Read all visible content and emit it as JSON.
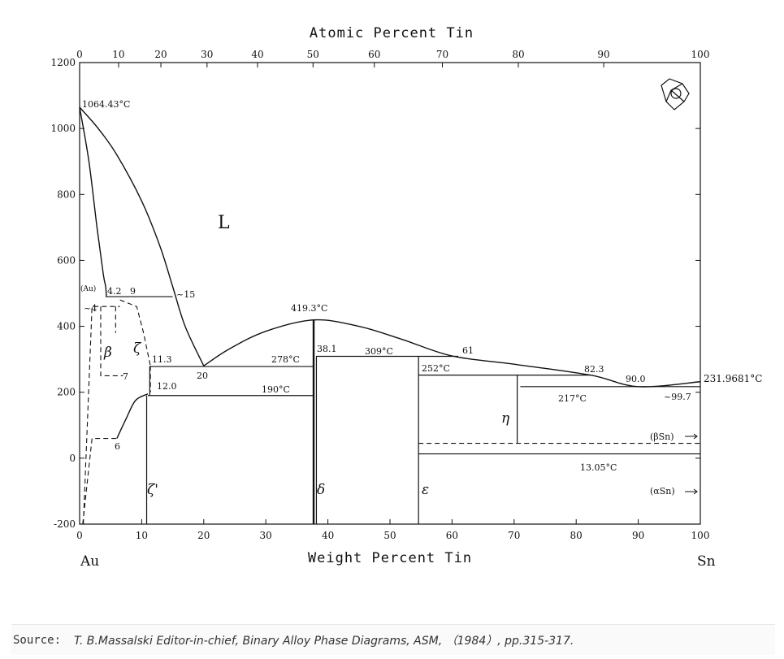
{
  "chart_data": {
    "type": "phase-diagram",
    "title": "",
    "xlabel_bottom": "Weight Percent Tin",
    "xlabel_top": "Atomic Percent Tin",
    "ylabel": "",
    "xlim": [
      0,
      100
    ],
    "ylim": [
      -200,
      1200
    ],
    "x_bottom_ticks": [
      "0",
      "10",
      "20",
      "30",
      "40",
      "50",
      "60",
      "70",
      "80",
      "90",
      "100"
    ],
    "x_top_ticks": [
      "0",
      "10",
      "20",
      "30",
      "40",
      "50",
      "60",
      "70",
      "80",
      "90",
      "100"
    ],
    "y_ticks": [
      "-200",
      "0",
      "200",
      "400",
      "600",
      "800",
      "1000",
      "1200"
    ],
    "y_tick_values": [
      -200,
      0,
      200,
      400,
      600,
      800,
      1000,
      1200
    ],
    "end_labels": {
      "left": "Au",
      "right": "Sn"
    },
    "annotations": {
      "au_melt": "1064.43°C",
      "au_phase": "(Au)",
      "c_4_2": "4.2",
      "c_9": "9",
      "c_15": "~15",
      "c_4": "~4",
      "c_7": "7",
      "c_6": "6",
      "c_11_3": "11.3",
      "c_12_0": "12.0",
      "c_20": "20",
      "t_278": "278°C",
      "t_190": "190°C",
      "t_419": "419.3°C",
      "c_38_1": "38.1",
      "t_309": "309°C",
      "c_61": "61",
      "t_252": "252°C",
      "c_82_3": "82.3",
      "c_90_0": "90.0",
      "t_217": "217°C",
      "c_99_7": "~99.7",
      "sn_melt": "231.9681°C",
      "beta_sn": "(βSn)",
      "t_13": "13.05°C",
      "alpha_sn": "(αSn)"
    },
    "phase_labels": {
      "liquid": "L",
      "beta": "β",
      "zeta": "ζ",
      "zeta_prime": "ζ'",
      "delta": "δ",
      "epsilon": "ε",
      "eta": "η"
    },
    "liquidus_left": [
      [
        0,
        1064.43
      ],
      [
        3,
        1000
      ],
      [
        6,
        920
      ],
      [
        10,
        780
      ],
      [
        13,
        640
      ],
      [
        15,
        520
      ],
      [
        17,
        400
      ],
      [
        20,
        280
      ]
    ],
    "liquidus_right": [
      [
        20,
        280
      ],
      [
        24,
        330
      ],
      [
        30,
        385
      ],
      [
        37.7,
        419.3
      ],
      [
        45,
        400
      ],
      [
        52,
        360
      ],
      [
        60,
        310
      ],
      [
        70,
        285
      ],
      [
        82.3,
        252
      ],
      [
        90,
        217
      ],
      [
        100,
        231.97
      ]
    ],
    "solidus_au": [
      [
        0,
        1064.43
      ],
      [
        1.5,
        900
      ],
      [
        2.8,
        700
      ],
      [
        3.8,
        560
      ],
      [
        4.2,
        520
      ],
      [
        4.3,
        490
      ]
    ],
    "eutectic_15": {
      "temp": 490,
      "x_from": 4.2,
      "x_to": 15
    },
    "eutectic_278": {
      "temp": 278,
      "x_from": 11.3,
      "x_to": 37.7
    },
    "eutectic_217": {
      "temp": 217,
      "x_from": 71,
      "x_to": 100
    },
    "peritectic_309": {
      "temp": 309,
      "x_from": 38.1,
      "x_to": 61
    },
    "peritectic_252": {
      "temp": 252,
      "x_from": 54.6,
      "x_to": 82.3
    },
    "zeta_prime_boundary": {
      "temp": 190,
      "x_from": 11,
      "x_to": 37.7
    },
    "allotropic": {
      "temp": 13.05,
      "x_from": 54.6,
      "x_to": 100
    },
    "beta_sn_dashed": {
      "temp": 45,
      "x_from": 54.6,
      "x_to": 100
    },
    "delta_line_x": 37.7,
    "epsilon_line_x": 54.6,
    "eta_line_x": 70.5,
    "zeta_prime_left_x": 10.8,
    "dashed_boundaries": [
      [
        [
          0.5,
          -200
        ],
        [
          2,
          60
        ],
        [
          6,
          60
        ]
      ],
      [
        [
          0.6,
          -200
        ],
        [
          2,
          460
        ],
        [
          6.5,
          460
        ]
      ],
      [
        [
          3.4,
          460
        ],
        [
          3.4,
          250
        ],
        [
          7,
          250
        ]
      ],
      [
        [
          5.8,
          460
        ],
        [
          5.8,
          380
        ]
      ],
      [
        [
          6.5,
          480
        ],
        [
          9.2,
          460
        ],
        [
          10.3,
          380
        ],
        [
          11.4,
          280
        ]
      ],
      [
        [
          11.4,
          280
        ],
        [
          11.4,
          200
        ]
      ]
    ],
    "zeta_solvus": [
      [
        6,
        60
      ],
      [
        7.5,
        120
      ],
      [
        9,
        175
      ],
      [
        11,
        195
      ]
    ]
  },
  "source": {
    "label": "Source:",
    "text": "T. B.Massalski Editor-in-chief, Binary Alloy Phase Diagrams, ASM, （1984）, pp.315-317."
  }
}
